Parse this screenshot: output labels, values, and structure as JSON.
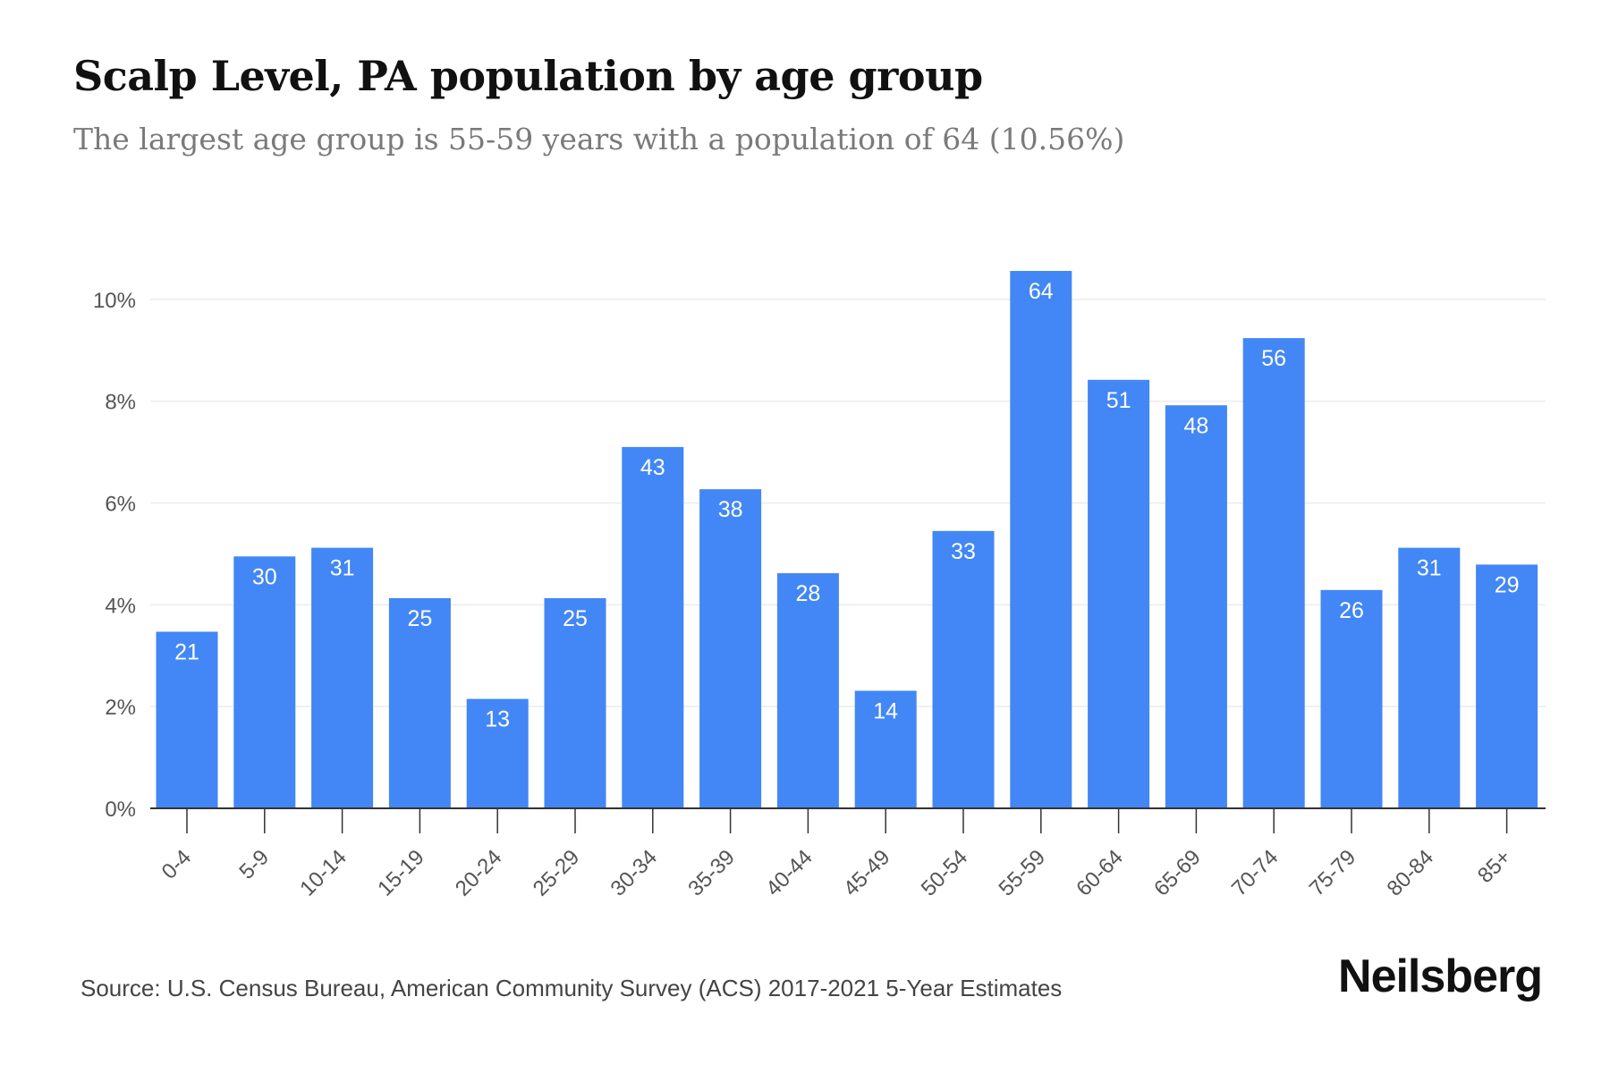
{
  "header": {
    "title": "Scalp Level, PA population by age group",
    "subtitle": "The largest age group is 55-59 years with a population of 64 (10.56%)"
  },
  "footer": {
    "source": "Source: U.S. Census Bureau, American Community Survey (ACS) 2017-2021 5-Year Estimates",
    "brand": "Neilsberg"
  },
  "colors": {
    "bar": "#4287f5",
    "bar_label": "#ffffff",
    "grid": "#ececec",
    "axis": "#333333",
    "tick_text": "#555555"
  },
  "chart_data": {
    "type": "bar",
    "title": "Scalp Level, PA population by age group",
    "xlabel": "",
    "ylabel": "",
    "categories": [
      "0-4",
      "5-9",
      "10-14",
      "15-19",
      "20-24",
      "25-29",
      "30-34",
      "35-39",
      "40-44",
      "45-49",
      "50-54",
      "55-59",
      "60-64",
      "65-69",
      "70-74",
      "75-79",
      "80-84",
      "85+"
    ],
    "series": [
      {
        "values": [
          3.47,
          4.95,
          5.12,
          4.13,
          2.15,
          4.13,
          7.1,
          6.27,
          4.62,
          2.31,
          5.45,
          10.56,
          8.42,
          7.92,
          9.24,
          4.29,
          5.12,
          4.79
        ],
        "data_labels": [
          21,
          30,
          31,
          25,
          13,
          25,
          43,
          38,
          28,
          14,
          33,
          64,
          51,
          48,
          56,
          26,
          31,
          29
        ]
      }
    ],
    "yticks": [
      "0%",
      "2%",
      "4%",
      "6%",
      "8%",
      "10%"
    ],
    "ytick_values": [
      0,
      2,
      4,
      6,
      8,
      10
    ],
    "ylim": [
      0,
      10.56
    ],
    "grid": true,
    "legend": "none"
  }
}
